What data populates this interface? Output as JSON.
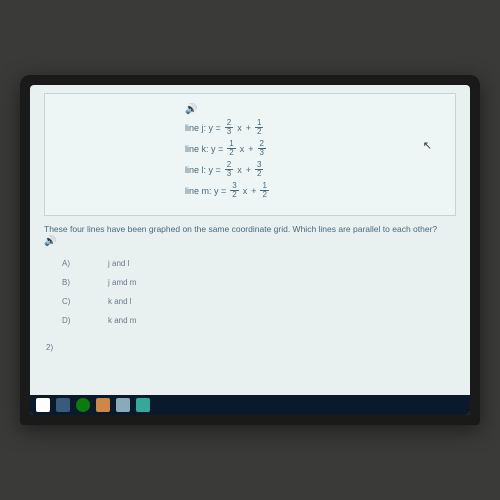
{
  "equations": {
    "speaker_icon": "🔊",
    "lines": [
      {
        "name": "j",
        "prefix": "line j: y =",
        "m_n": "2",
        "m_d": "3",
        "op": "+",
        "b_n": "1",
        "b_d": "2"
      },
      {
        "name": "k",
        "prefix": "line k: y =",
        "m_n": "1",
        "m_d": "2",
        "op": "+",
        "b_n": "2",
        "b_d": "3"
      },
      {
        "name": "l",
        "prefix": "line l: y =",
        "m_n": "2",
        "m_d": "3",
        "op": "+",
        "b_n": "3",
        "b_d": "2"
      },
      {
        "name": "m",
        "prefix": "line m: y =",
        "m_n": "3",
        "m_d": "2",
        "op": "+",
        "b_n": "1",
        "b_d": "2"
      }
    ]
  },
  "question": {
    "text": "These four lines have been graphed on the same coordinate grid. Which lines are parallel to each other?",
    "speaker_icon": "🔊"
  },
  "answers": [
    {
      "label": "A)",
      "text": "j and l"
    },
    {
      "label": "B)",
      "text": "j amd m"
    },
    {
      "label": "C)",
      "text": "k and l"
    },
    {
      "label": "D)",
      "text": "k and m"
    }
  ],
  "next_num": "2)",
  "colors": {
    "screen_bg": "#e8f0f0",
    "text": "#4a6a7a",
    "taskbar": "#0a1a2a"
  }
}
